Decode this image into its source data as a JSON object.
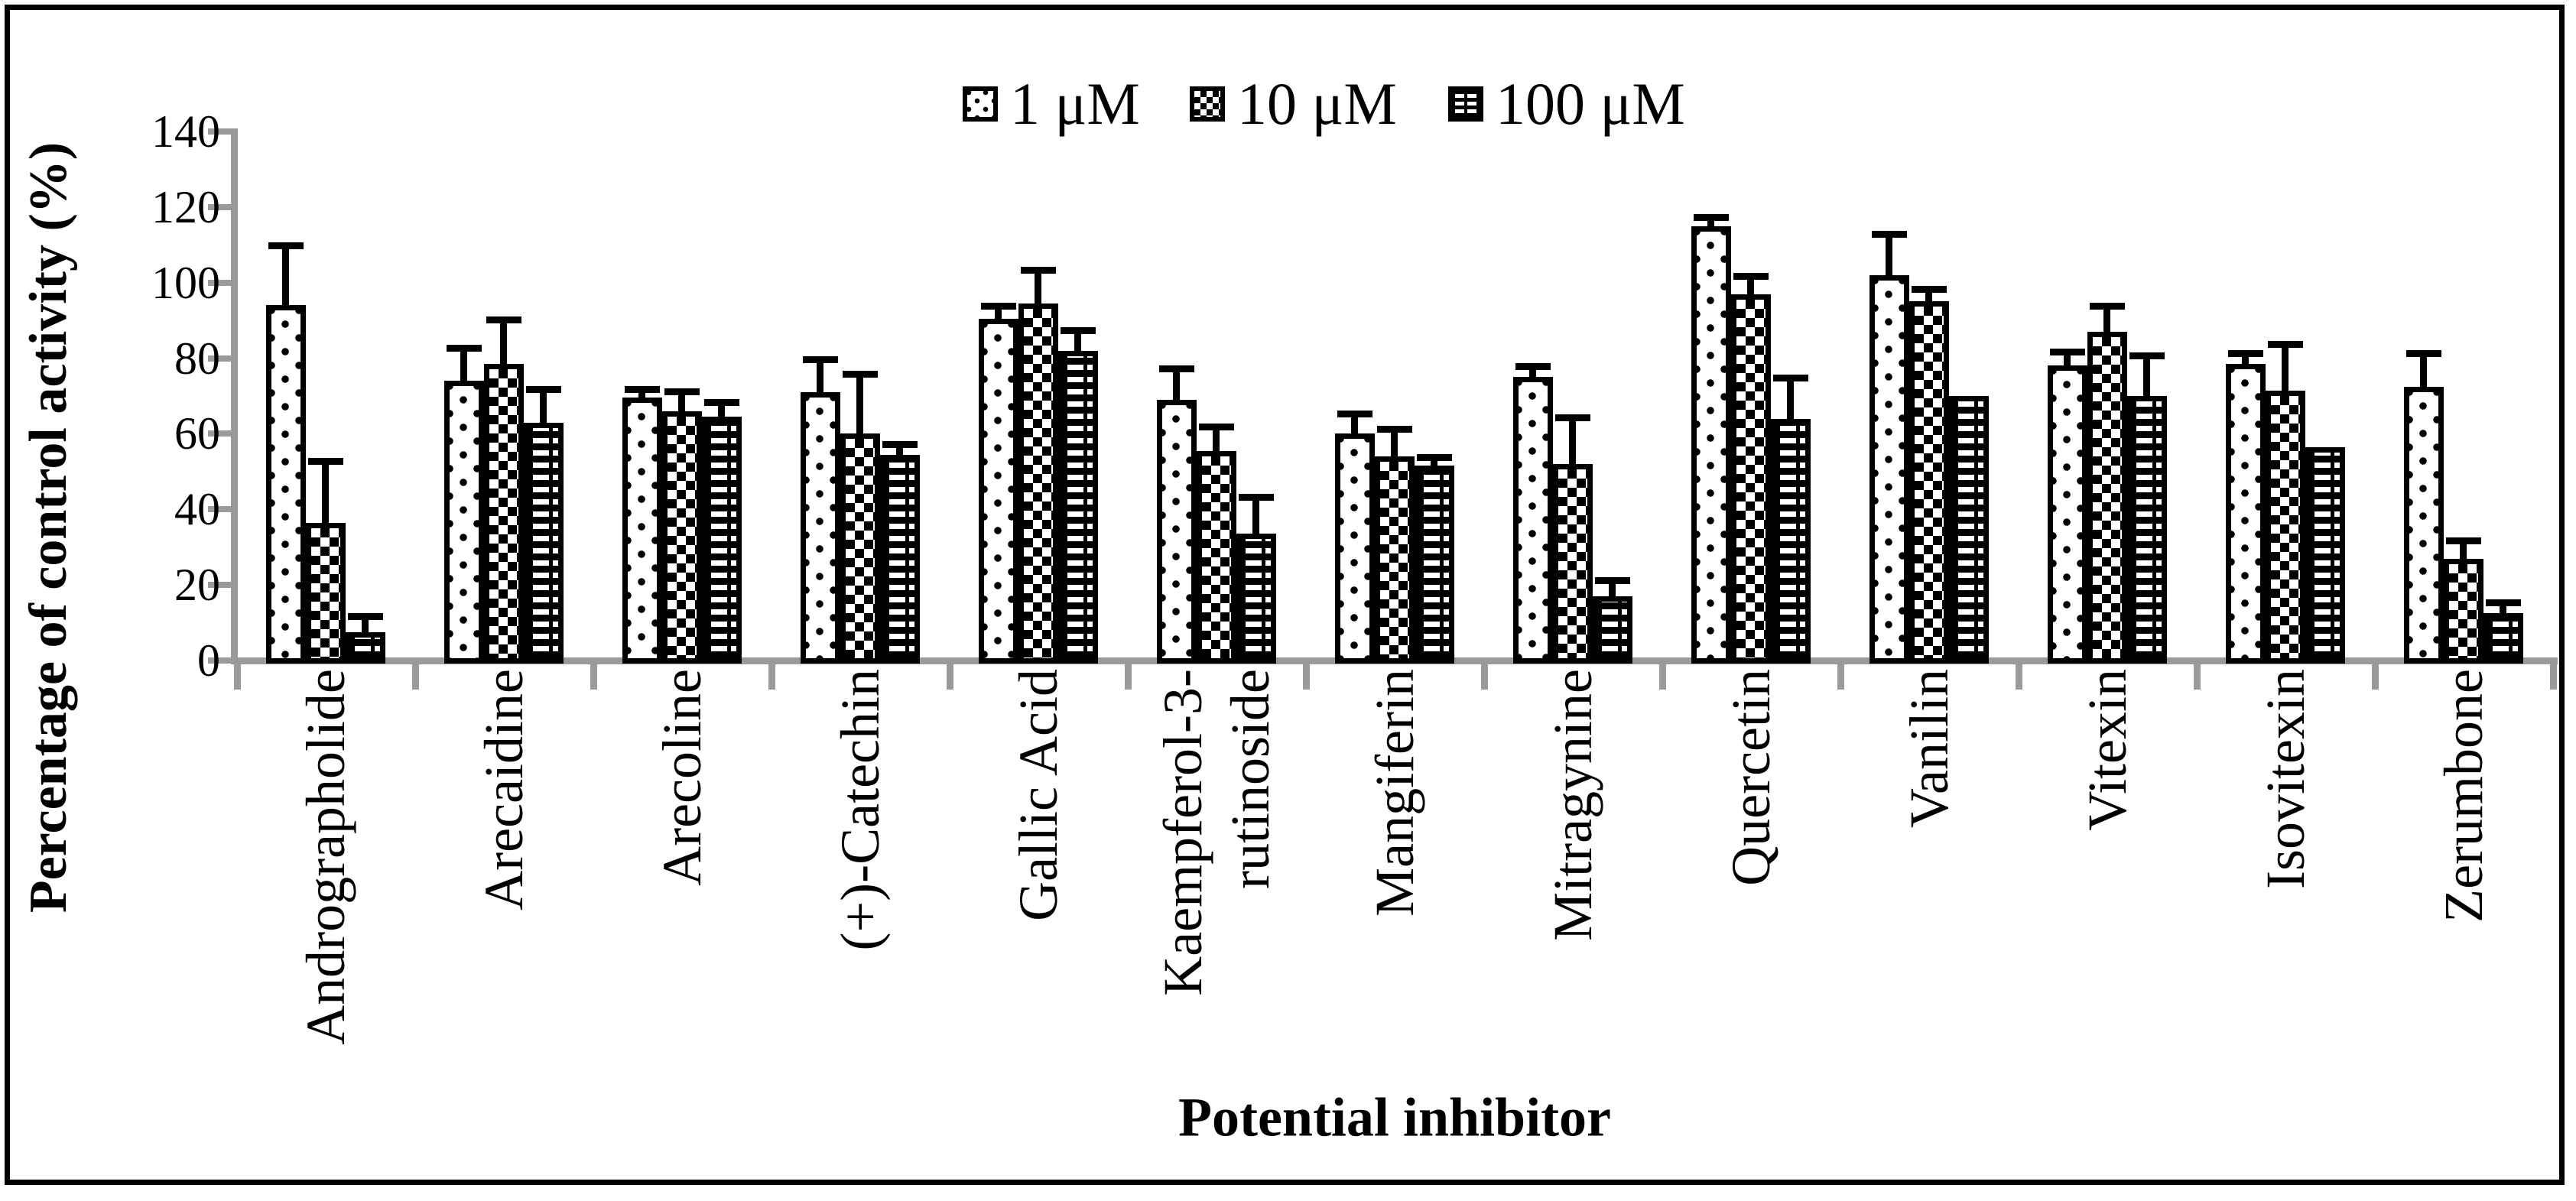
{
  "figure": {
    "background": "#ffffff",
    "border_color": "#000000"
  },
  "colors": {
    "axis": "#9a9a9a",
    "bar_outline": "#000000",
    "text": "#000000",
    "background": "#ffffff"
  },
  "legend": {
    "position": "top-center",
    "items": [
      {
        "label": "1 μM",
        "pattern": "dots"
      },
      {
        "label": "10 μM",
        "pattern": "diamond-checker"
      },
      {
        "label": "100 μM",
        "pattern": "white-dashes-on-black"
      }
    ]
  },
  "chart_data": {
    "type": "bar",
    "title": "",
    "xlabel": "Potential inhibitor",
    "ylabel": "Percentage of control activity (%)",
    "ylim": [
      0,
      140
    ],
    "ytick_step": 20,
    "yticks": [
      0,
      20,
      40,
      60,
      80,
      100,
      120,
      140
    ],
    "grid": false,
    "error_bars": "upper",
    "legend_position": "top-center",
    "categories": [
      "Andrographolide",
      "Arecaidine",
      "Arecoline",
      "(+)-Catechin",
      "Gallic Acid",
      "Kaempferol-3-\nrutinoside",
      "Mangiferin",
      "Mitragynine",
      "Quercetin",
      "Vanilin",
      "Vitexin",
      "Isovitexin",
      "Zerumbone"
    ],
    "series": [
      {
        "name": "1 μM",
        "pattern": "dots",
        "values": [
          94,
          74,
          69.5,
          71,
          90.5,
          69,
          60,
          75,
          115,
          102,
          78,
          78.5,
          72.5
        ],
        "errors": [
          15,
          8,
          1.5,
          8,
          2.5,
          7.5,
          4.5,
          2,
          1.5,
          10,
          3,
          2,
          8
        ]
      },
      {
        "name": "10 μM",
        "pattern": "diamond-checker",
        "values": [
          36.5,
          78.5,
          66,
          60,
          94.5,
          55.5,
          54,
          52,
          97,
          95,
          87,
          71.5,
          27
        ],
        "errors": [
          15.5,
          11,
          4.5,
          15,
          8,
          5.5,
          6.5,
          11.5,
          4,
          2.5,
          6,
          11.5,
          4
        ]
      },
      {
        "name": "100 μM",
        "pattern": "white-dashes-on-black",
        "values": [
          7.5,
          63,
          64.5,
          54.5,
          82,
          33.5,
          51.5,
          17,
          64,
          70,
          70,
          56.5,
          12.5
        ],
        "errors": [
          3.5,
          8,
          3,
          2,
          4.5,
          9,
          1.5,
          3.5,
          10,
          0,
          10,
          0,
          2
        ]
      }
    ]
  }
}
